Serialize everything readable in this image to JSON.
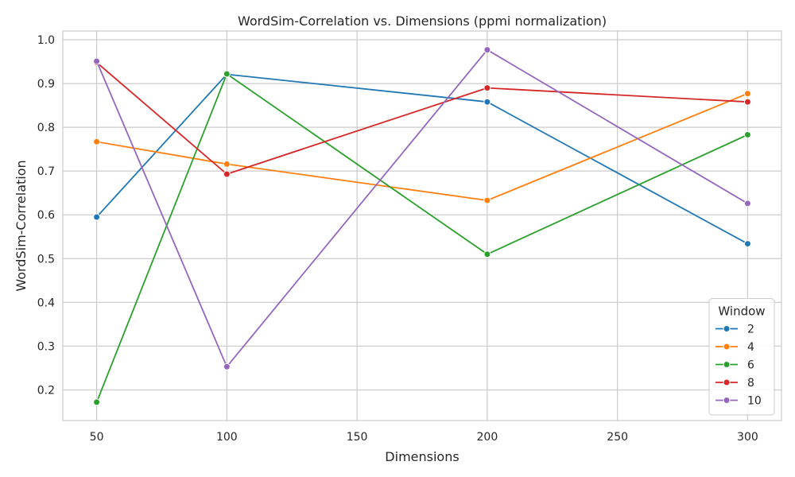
{
  "chart_data": {
    "type": "line",
    "title": "WordSim-Correlation vs. Dimensions (ppmi normalization)",
    "xlabel": "Dimensions",
    "ylabel": "WordSim-Correlation",
    "xlim": [
      37,
      313
    ],
    "ylim": [
      0.13,
      1.02
    ],
    "xticks": [
      50,
      100,
      150,
      200,
      250,
      300
    ],
    "yticks": [
      0.2,
      0.3,
      0.4,
      0.5,
      0.6,
      0.7,
      0.8,
      0.9,
      1.0
    ],
    "xtick_labels": [
      "50",
      "100",
      "150",
      "200",
      "250",
      "300"
    ],
    "ytick_labels": [
      "0.2",
      "0.3",
      "0.4",
      "0.5",
      "0.6",
      "0.7",
      "0.8",
      "0.9",
      "1.0"
    ],
    "grid": true,
    "legend_title": "Window",
    "legend_position": "bottom-right",
    "x": [
      50,
      100,
      200,
      300
    ],
    "series": [
      {
        "name": "2",
        "color": "#1f77b4",
        "values": [
          0.595,
          0.921,
          0.858,
          0.534
        ]
      },
      {
        "name": "4",
        "color": "#ff7f0e",
        "values": [
          0.767,
          0.716,
          0.633,
          0.877
        ]
      },
      {
        "name": "6",
        "color": "#2ca02c",
        "values": [
          0.172,
          0.922,
          0.51,
          0.783
        ]
      },
      {
        "name": "8",
        "color": "#d62728",
        "values": [
          0.948,
          0.693,
          0.89,
          0.858
        ]
      },
      {
        "name": "10",
        "color": "#9467bd",
        "values": [
          0.951,
          0.253,
          0.977,
          0.626
        ]
      }
    ]
  }
}
